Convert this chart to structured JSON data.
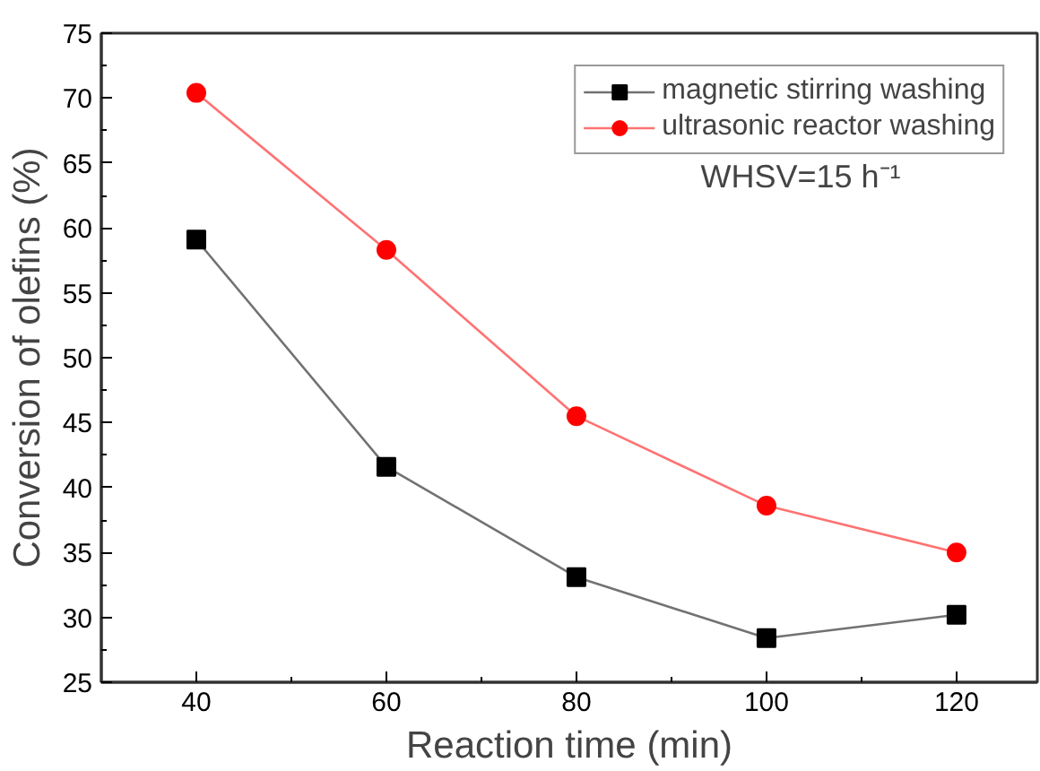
{
  "chart_data": {
    "type": "line",
    "xlabel": "Reaction time (min)",
    "ylabel": "Conversion of olefins (%)",
    "x": [
      40,
      60,
      80,
      100,
      120
    ],
    "series": [
      {
        "name": "magnetic stirring washing",
        "color": "#000000",
        "marker": "square",
        "values": [
          59.1,
          41.6,
          33.1,
          28.4,
          30.2
        ]
      },
      {
        "name": "ultrasonic reactor washing",
        "color": "#ff0000",
        "marker": "circle",
        "values": [
          70.4,
          58.3,
          45.5,
          38.6,
          35.0
        ]
      }
    ],
    "xlim": [
      30,
      128.5
    ],
    "xticks": [
      40,
      60,
      80,
      100,
      120
    ],
    "ylim": [
      25,
      75
    ],
    "yticks": [
      25,
      30,
      35,
      40,
      45,
      50,
      55,
      60,
      65,
      70,
      75
    ],
    "annotations": [
      "WHSV=15 h⁻¹"
    ],
    "legend": "top right",
    "grid": false,
    "line_style": "solid"
  }
}
